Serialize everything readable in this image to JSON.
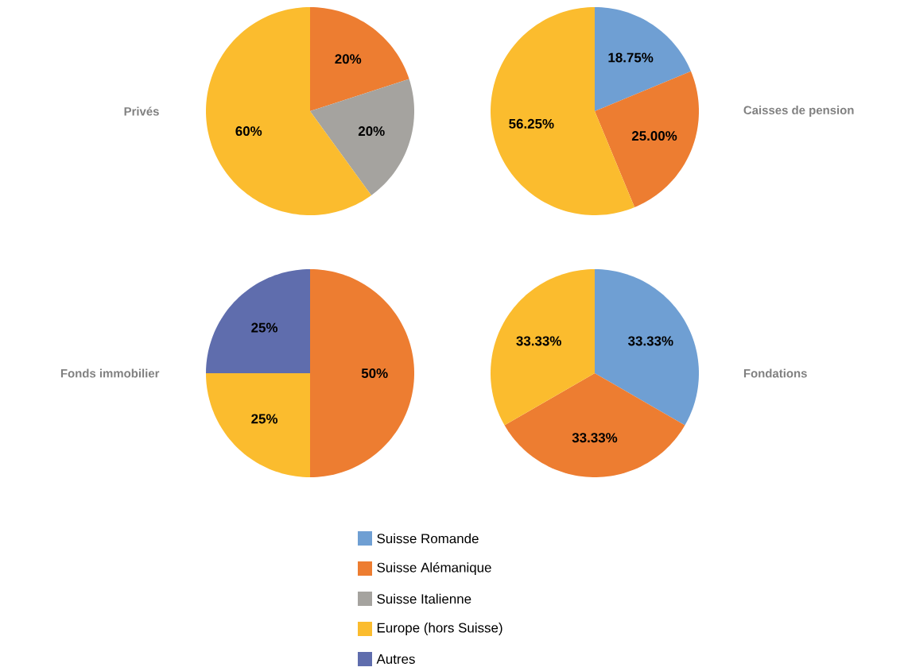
{
  "chart_data": [
    {
      "type": "pie",
      "title": "Privés",
      "values": [
        20,
        20,
        60
      ],
      "colors": [
        "#ed7d31",
        "#a5a39f",
        "#fbbc2e"
      ],
      "value_labels": [
        "20%",
        "20%",
        "60%"
      ]
    },
    {
      "type": "pie",
      "title": "Caisses de pension",
      "values": [
        18.75,
        25,
        56.25
      ],
      "colors": [
        "#6f9fd3",
        "#ed7d31",
        "#fbbc2e"
      ],
      "value_labels": [
        "18.75%",
        "25.00%",
        "56.25%"
      ]
    },
    {
      "type": "pie",
      "title": "Fonds immobilier",
      "values": [
        50,
        25,
        25
      ],
      "colors": [
        "#ed7d31",
        "#fbbc2e",
        "#5f6dad"
      ],
      "value_labels": [
        "50%",
        "25%",
        "25%"
      ]
    },
    {
      "type": "pie",
      "title": "Fondations",
      "categories": [
        "Suisse Romande",
        "Suisse Alémanique",
        "Suisse Italienne",
        "Europe (hors Suisse)",
        "Autres"
      ],
      "values": [
        33.33,
        33.33,
        0,
        33.33,
        0
      ],
      "colors": [
        "#6f9fd3",
        "#ed7d31",
        "#a5a39f",
        "#fbbc2e",
        "#5f6dad"
      ],
      "value_labels": [
        "33.33%",
        "33.33%",
        null,
        "33.33%",
        null
      ],
      "legend": "bottom"
    }
  ]
}
